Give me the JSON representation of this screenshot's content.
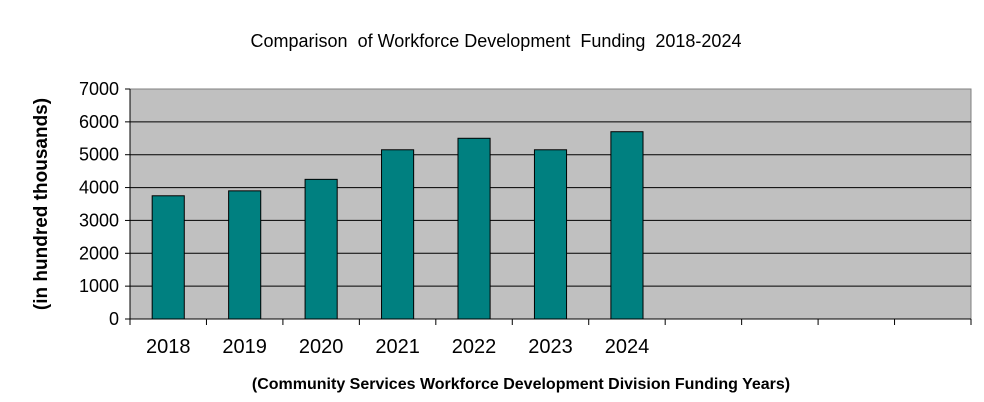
{
  "chart_data": {
    "type": "bar",
    "title": "Comparison  of Workforce Development  Funding  2018-2024",
    "xlabel": "(Community Services Workforce Development Division Funding Years)",
    "ylabel": "(in hundred thousands)",
    "categories": [
      "2018",
      "2019",
      "2020",
      "2021",
      "2022",
      "2023",
      "2024",
      "",
      "",
      "",
      ""
    ],
    "values": [
      3750,
      3900,
      4250,
      5150,
      5500,
      5150,
      5700,
      null,
      null,
      null,
      null
    ],
    "yticks": [
      0,
      1000,
      2000,
      3000,
      4000,
      5000,
      6000,
      7000
    ],
    "ylim": [
      0,
      7000
    ],
    "grid": true,
    "legend": "none",
    "colors": {
      "bar": "#008080",
      "plot_background": "#c0c0c0",
      "gridline": "#000000"
    }
  }
}
